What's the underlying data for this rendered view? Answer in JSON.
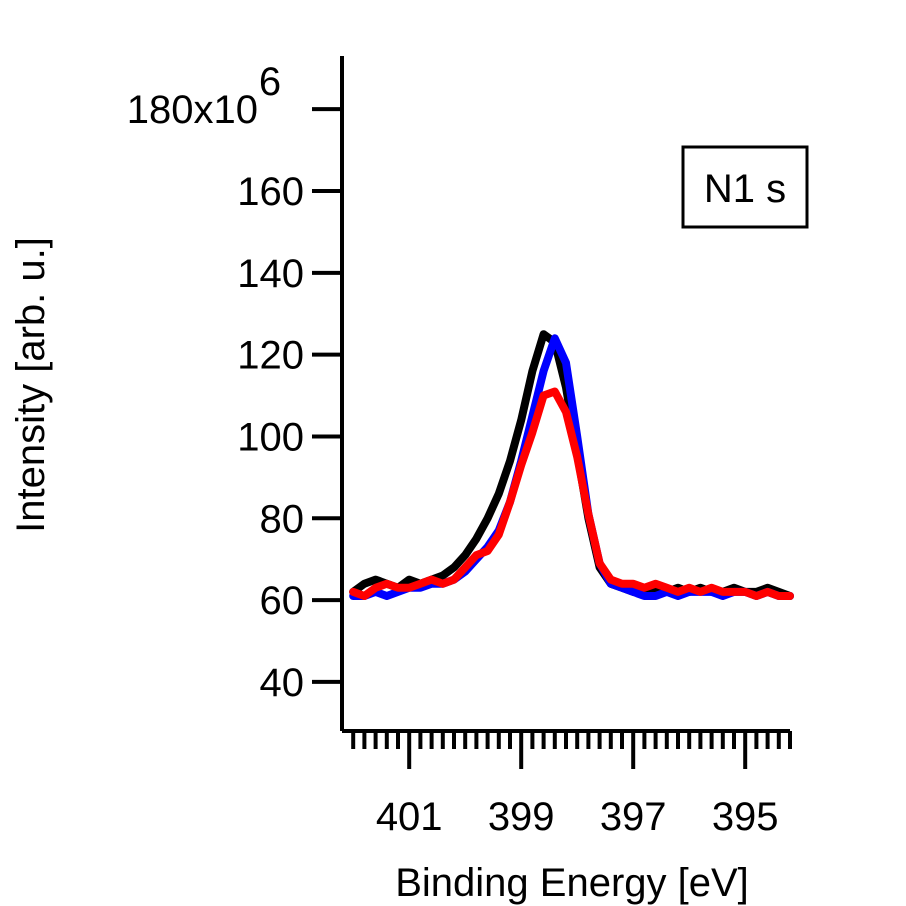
{
  "chart_data": {
    "type": "line",
    "title": "",
    "xlabel": "Binding Energy [eV]",
    "ylabel": "Intensity [arb. u.]",
    "x_reversed": true,
    "xlim": [
      402.2,
      394.2
    ],
    "ylim": [
      28,
      193
    ],
    "y_unit_prefix": "x10",
    "y_unit_exponent": "6",
    "x_major_ticks": [
      401,
      399,
      397,
      395
    ],
    "x_major_tick_labels": [
      "401",
      "399",
      "397",
      "395"
    ],
    "y_major_ticks": [
      40,
      60,
      80,
      100,
      120,
      140,
      160,
      180
    ],
    "y_major_tick_labels": [
      "40",
      "60",
      "80",
      "100",
      "120",
      "140",
      "160",
      "180"
    ],
    "annotation": "N1 s",
    "series": [
      {
        "color": "#000000",
        "x": [
          402.0,
          401.8,
          401.6,
          401.4,
          401.2,
          401.0,
          400.8,
          400.6,
          400.4,
          400.2,
          400.0,
          399.8,
          399.6,
          399.4,
          399.2,
          399.0,
          398.8,
          398.6,
          398.4,
          398.2,
          398.0,
          397.8,
          397.6,
          397.4,
          397.2,
          397.0,
          396.8,
          396.6,
          396.4,
          396.2,
          396.0,
          395.8,
          395.6,
          395.4,
          395.2,
          395.0,
          394.8,
          394.6,
          394.4,
          394.2
        ],
        "y": [
          62,
          64,
          65,
          64,
          63,
          65,
          64,
          65,
          66,
          68,
          71,
          75,
          80,
          86,
          94,
          104,
          116,
          125,
          123,
          112,
          96,
          80,
          68,
          64,
          63,
          62,
          63,
          62,
          62,
          63,
          62,
          63,
          62,
          62,
          63,
          62,
          62,
          63,
          62,
          61
        ]
      },
      {
        "color": "#0000ff",
        "x": [
          402.0,
          401.8,
          401.6,
          401.4,
          401.2,
          401.0,
          400.8,
          400.6,
          400.4,
          400.2,
          400.0,
          399.8,
          399.6,
          399.4,
          399.2,
          399.0,
          398.8,
          398.6,
          398.4,
          398.2,
          398.0,
          397.8,
          397.6,
          397.4,
          397.2,
          397.0,
          396.8,
          396.6,
          396.4,
          396.2,
          396.0,
          395.8,
          395.6,
          395.4,
          395.2,
          395.0,
          394.8,
          394.6,
          394.4,
          394.2
        ],
        "y": [
          61,
          61,
          62,
          61,
          62,
          63,
          63,
          64,
          64,
          65,
          67,
          70,
          73,
          77,
          84,
          94,
          105,
          116,
          124,
          118,
          100,
          81,
          69,
          64,
          63,
          62,
          61,
          61,
          62,
          61,
          62,
          62,
          62,
          61,
          62,
          62,
          61,
          62,
          61,
          61
        ]
      },
      {
        "color": "#ff0000",
        "x": [
          402.0,
          401.8,
          401.6,
          401.4,
          401.2,
          401.0,
          400.8,
          400.6,
          400.4,
          400.2,
          400.0,
          399.8,
          399.6,
          399.4,
          399.2,
          399.0,
          398.8,
          398.6,
          398.4,
          398.2,
          398.0,
          397.8,
          397.6,
          397.4,
          397.2,
          397.0,
          396.8,
          396.6,
          396.4,
          396.2,
          396.0,
          395.8,
          395.6,
          395.4,
          395.2,
          395.0,
          394.8,
          394.6,
          394.4,
          394.2
        ],
        "y": [
          62,
          61,
          63,
          64,
          63,
          63,
          64,
          65,
          64,
          65,
          68,
          71,
          72,
          76,
          84,
          93,
          101,
          110,
          111,
          106,
          95,
          81,
          69,
          65,
          64,
          64,
          63,
          64,
          63,
          62,
          63,
          62,
          63,
          62,
          62,
          62,
          61,
          62,
          61,
          61
        ]
      }
    ]
  }
}
